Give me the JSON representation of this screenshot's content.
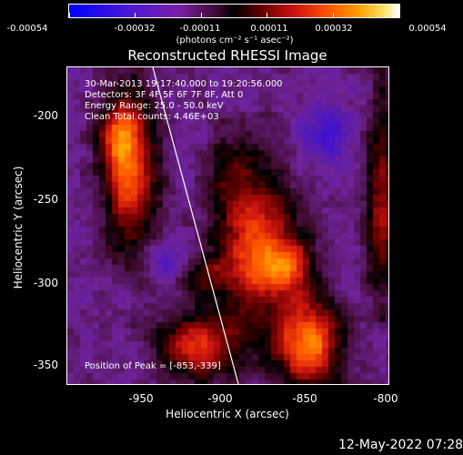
{
  "colorbar": {
    "tick_labels": [
      "-0.00054",
      "-0.00032",
      "-0.00011",
      "0.00011",
      "0.00032",
      "0.00054"
    ],
    "units": "(photons cm⁻² s⁻¹ asec⁻²)",
    "range": [
      -0.00054,
      0.00054
    ]
  },
  "plot": {
    "title": "Reconstructed RHESSI Image",
    "info": [
      "30-Mar-2013 19:17:40.000 to 19:20:56.000",
      "Detectors: 3F 4F 5F 6F 7F 8F, Att 0",
      "Energy Range: 25.0 - 50.0 keV",
      "Clean     Total counts: 4.46E+03"
    ],
    "peak_text": "Position of Peak = [-853,-339]",
    "xlabel": "Heliocentric X (arcsec)",
    "ylabel": "Heliocentric Y (arcsec)",
    "x_ticks": [
      "-950",
      "-900",
      "-850",
      "-800"
    ],
    "y_ticks": [
      "-200",
      "-250",
      "-300",
      "-350"
    ]
  },
  "footer": {
    "timestamp": "12-May-2022 07:28"
  },
  "chart_data": {
    "type": "heatmap",
    "title": "Reconstructed RHESSI Image",
    "xlabel": "Heliocentric X (arcsec)",
    "ylabel": "Heliocentric Y (arcsec)",
    "xlim": [
      -992,
      -800
    ],
    "ylim": [
      -365,
      -175
    ],
    "colorbar_range": [
      -0.00054,
      0.00054
    ],
    "peak_position": [
      -853,
      -339
    ],
    "grid": false
  }
}
